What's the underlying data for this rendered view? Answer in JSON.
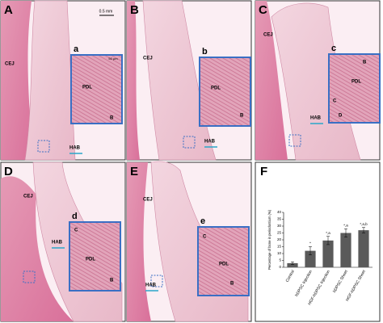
{
  "scale_bar": "0.5 mm",
  "inset_scale_bar": "50 μm",
  "panels": [
    {
      "label": "A",
      "inset_label": "a",
      "cej": "CEJ",
      "hab": "HAB",
      "inset_texts": [
        "PDL",
        "B"
      ]
    },
    {
      "label": "B",
      "inset_label": "b",
      "cej": "CEJ",
      "hab": "HAB",
      "inset_texts": [
        "PDL",
        "B"
      ]
    },
    {
      "label": "C",
      "inset_label": "c",
      "cej": "CEJ",
      "hab": "HAB",
      "inset_texts": [
        "B",
        "PDL",
        "C",
        "D"
      ]
    },
    {
      "label": "D",
      "inset_label": "d",
      "cej": "CEJ",
      "hab": "HAB",
      "inset_texts": [
        "C",
        "PDL",
        "B"
      ]
    },
    {
      "label": "E",
      "inset_label": "e",
      "cej": "CEJ",
      "hab": "HAB",
      "inset_texts": [
        "C",
        "PDL",
        "B"
      ]
    }
  ],
  "chart_label": "F",
  "chart_data": {
    "type": "bar",
    "y_label": "Percentage of bone in periodontium (%)",
    "categories": [
      "Control",
      "hDPSC Injection",
      "HGF-hDPSC Injection",
      "hDPSC Sheet",
      "HGF-hDPSC Sheet"
    ],
    "values": [
      3,
      12,
      19.5,
      25,
      27
    ],
    "errors": [
      1,
      3,
      3,
      3,
      2
    ],
    "annotations": [
      null,
      "*",
      "*,a",
      "*,a",
      "*,a,b"
    ],
    "color": "#5a5a5a",
    "ylim": [
      0,
      40
    ],
    "yticks": [
      0,
      5,
      10,
      15,
      20,
      25,
      30,
      35,
      40
    ]
  }
}
